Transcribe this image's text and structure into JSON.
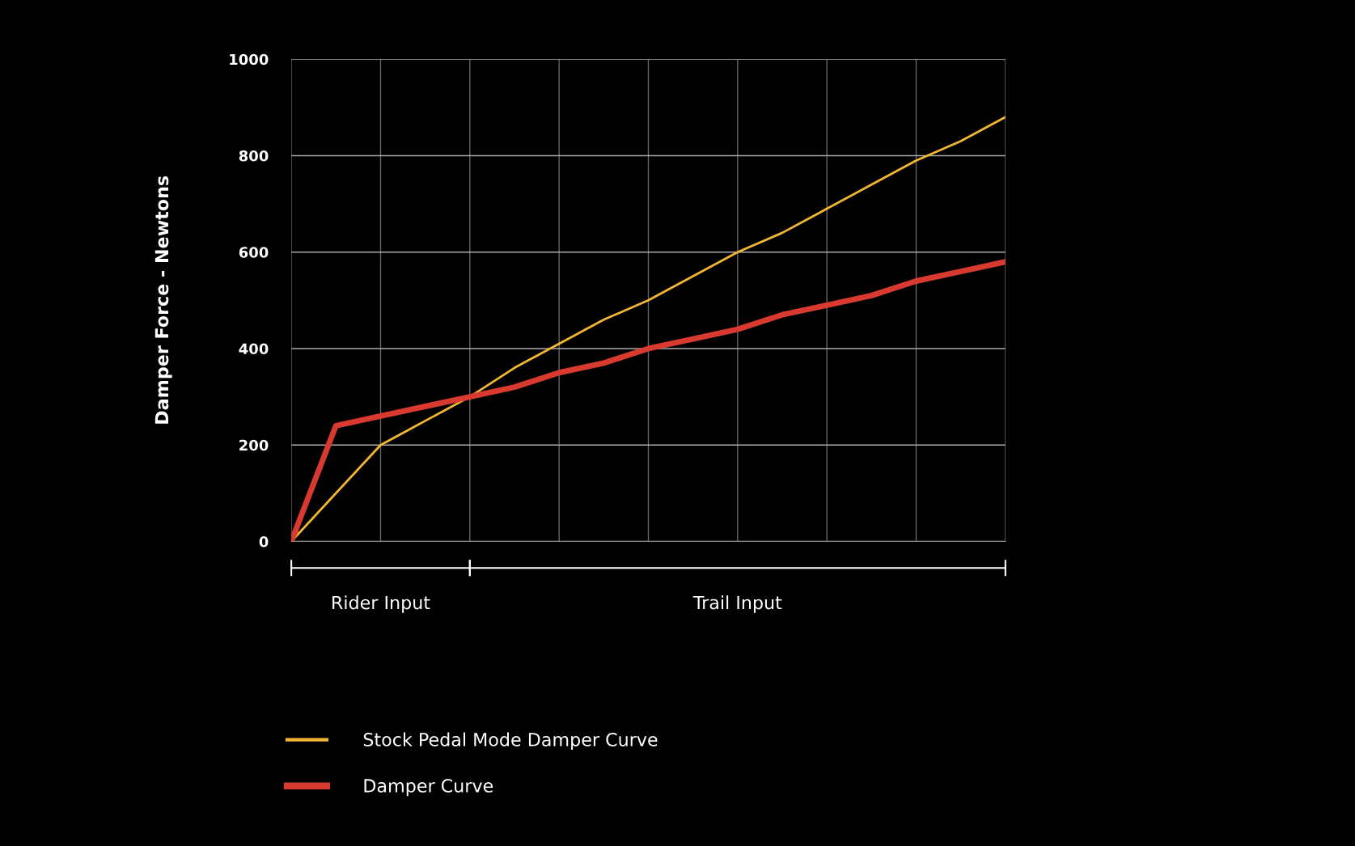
{
  "chart_data": {
    "type": "line",
    "ylabel": "Damper Force - Newtons",
    "categories": [
      null,
      null,
      null,
      null,
      null,
      null,
      null,
      null,
      null,
      null,
      null,
      null,
      null,
      null,
      null,
      null,
      null
    ],
    "ylim": [
      0,
      1000
    ],
    "yticks": [
      0,
      200,
      400,
      600,
      800,
      1000
    ],
    "grid": true,
    "legend": "bottom",
    "series": [
      {
        "name": "Stock Pedal Mode Damper Curve",
        "color": "#f2b632",
        "values": [
          0,
          100,
          200,
          250,
          300,
          360,
          410,
          460,
          500,
          550,
          600,
          640,
          690,
          740,
          790,
          830,
          880
        ]
      },
      {
        "name": "Damper Curve",
        "color": "#d93a30",
        "values": [
          0,
          240,
          260,
          280,
          300,
          320,
          350,
          370,
          400,
          420,
          440,
          470,
          490,
          510,
          540,
          560,
          580
        ]
      }
    ],
    "annotations": [
      "Rider Input",
      "Trail Input"
    ]
  }
}
